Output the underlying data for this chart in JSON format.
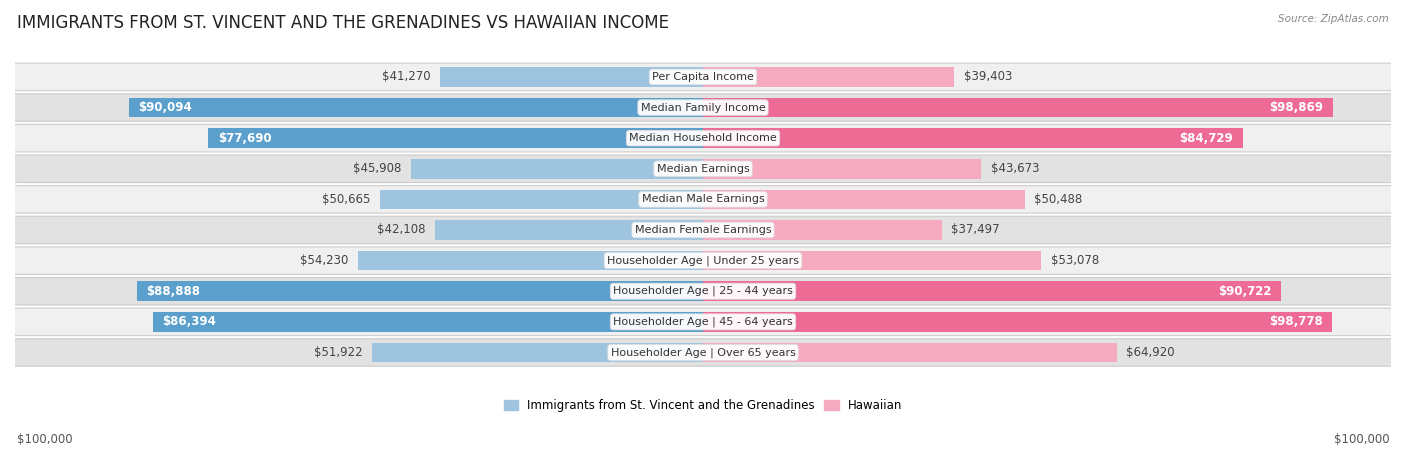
{
  "title": "IMMIGRANTS FROM ST. VINCENT AND THE GRENADINES VS HAWAIIAN INCOME",
  "source": "Source: ZipAtlas.com",
  "categories": [
    "Per Capita Income",
    "Median Family Income",
    "Median Household Income",
    "Median Earnings",
    "Median Male Earnings",
    "Median Female Earnings",
    "Householder Age | Under 25 years",
    "Householder Age | 25 - 44 years",
    "Householder Age | 45 - 64 years",
    "Householder Age | Over 65 years"
  ],
  "left_values": [
    41270,
    90094,
    77690,
    45908,
    50665,
    42108,
    54230,
    88888,
    86394,
    51922
  ],
  "right_values": [
    39403,
    98869,
    84729,
    43673,
    50488,
    37497,
    53078,
    90722,
    98778,
    64920
  ],
  "left_labels": [
    "$41,270",
    "$90,094",
    "$77,690",
    "$45,908",
    "$50,665",
    "$42,108",
    "$54,230",
    "$88,888",
    "$86,394",
    "$51,922"
  ],
  "right_labels": [
    "$39,403",
    "$98,869",
    "$84,729",
    "$43,673",
    "$50,488",
    "$37,497",
    "$53,078",
    "$90,722",
    "$98,778",
    "$64,920"
  ],
  "max_value": 100000,
  "left_color_light": "#9EC4E0",
  "left_color_dark": "#5B9FCC",
  "right_color_light": "#F5AABF",
  "right_color_dark": "#EE6B95",
  "threshold": 70000,
  "bg_color": "#ffffff",
  "row_bg_light": "#f0f0f0",
  "row_bg_dark": "#e2e2e2",
  "legend_left": "Immigrants from St. Vincent and the Grenadines",
  "legend_right": "Hawaiian",
  "xlabel_left": "$100,000",
  "xlabel_right": "$100,000",
  "title_fontsize": 12,
  "label_fontsize": 8.5,
  "category_fontsize": 8,
  "source_fontsize": 7.5
}
